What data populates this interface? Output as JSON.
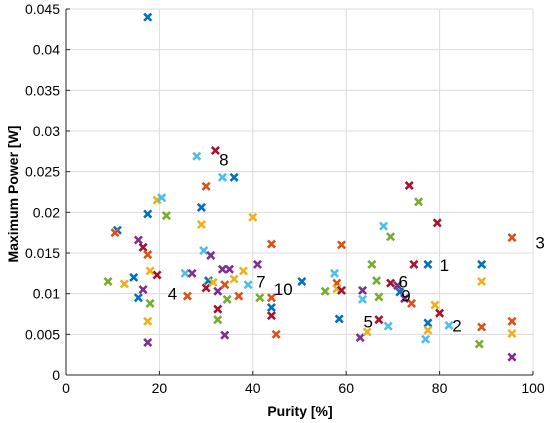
{
  "chart_data": {
    "type": "scatter",
    "title": "",
    "xlabel": "Purity [%]",
    "ylabel": "Maximum Power [W]",
    "xlim": [
      0,
      100
    ],
    "ylim": [
      0,
      0.045
    ],
    "xticks": [
      "0",
      "20",
      "40",
      "60",
      "80",
      "100"
    ],
    "yticks": [
      "0",
      "0.005",
      "0.01",
      "0.015",
      "0.02",
      "0.025",
      "0.03",
      "0.035",
      "0.04",
      "0.045"
    ],
    "grid": true,
    "legend": "none",
    "marker": "x",
    "colors": {
      "blue": "#0072bd",
      "orange": "#d95319",
      "yellow": "#edb120",
      "purple": "#7e2f8e",
      "green": "#77ac30",
      "cyan": "#4dbeee",
      "red": "#a2142f"
    },
    "points": [
      {
        "x": 17.5,
        "y": 0.044,
        "c": "blue"
      },
      {
        "x": 11,
        "y": 0.0178,
        "c": "blue"
      },
      {
        "x": 10.5,
        "y": 0.0175,
        "c": "orange"
      },
      {
        "x": 9,
        "y": 0.0115,
        "c": "green"
      },
      {
        "x": 12.5,
        "y": 0.0112,
        "c": "yellow"
      },
      {
        "x": 14.5,
        "y": 0.012,
        "c": "blue"
      },
      {
        "x": 15.5,
        "y": 0.0095,
        "c": "blue"
      },
      {
        "x": 16.5,
        "y": 0.0105,
        "c": "purple"
      },
      {
        "x": 15.5,
        "y": 0.0166,
        "c": "purple"
      },
      {
        "x": 16.5,
        "y": 0.0157,
        "c": "red"
      },
      {
        "x": 17.5,
        "y": 0.0198,
        "c": "blue"
      },
      {
        "x": 17.5,
        "y": 0.0148,
        "c": "orange"
      },
      {
        "x": 18,
        "y": 0.0128,
        "c": "yellow"
      },
      {
        "x": 18,
        "y": 0.0088,
        "c": "green"
      },
      {
        "x": 17.5,
        "y": 0.0066,
        "c": "yellow"
      },
      {
        "x": 17.5,
        "y": 0.004,
        "c": "purple"
      },
      {
        "x": 19.5,
        "y": 0.0215,
        "c": "yellow"
      },
      {
        "x": 20.5,
        "y": 0.0218,
        "c": "cyan"
      },
      {
        "x": 19.5,
        "y": 0.0123,
        "c": "red"
      },
      {
        "x": 21.5,
        "y": 0.0196,
        "c": "green"
      },
      {
        "x": 25.5,
        "y": 0.0125,
        "c": "cyan"
      },
      {
        "x": 26,
        "y": 0.0097,
        "c": "orange"
      },
      {
        "x": 27,
        "y": 0.0125,
        "c": "purple"
      },
      {
        "x": 28,
        "y": 0.0269,
        "c": "cyan"
      },
      {
        "x": 29,
        "y": 0.0206,
        "c": "blue"
      },
      {
        "x": 29,
        "y": 0.0185,
        "c": "yellow"
      },
      {
        "x": 29.5,
        "y": 0.0153,
        "c": "cyan"
      },
      {
        "x": 30,
        "y": 0.0232,
        "c": "orange"
      },
      {
        "x": 30.5,
        "y": 0.0116,
        "c": "blue"
      },
      {
        "x": 30,
        "y": 0.0107,
        "c": "red"
      },
      {
        "x": 31,
        "y": 0.0147,
        "c": "purple"
      },
      {
        "x": 31.5,
        "y": 0.0114,
        "c": "yellow"
      },
      {
        "x": 32,
        "y": 0.0276,
        "c": "red"
      },
      {
        "x": 32.5,
        "y": 0.0103,
        "c": "purple"
      },
      {
        "x": 32.5,
        "y": 0.0081,
        "c": "red"
      },
      {
        "x": 32.5,
        "y": 0.0068,
        "c": "green"
      },
      {
        "x": 33.5,
        "y": 0.0243,
        "c": "cyan"
      },
      {
        "x": 33.5,
        "y": 0.013,
        "c": "purple"
      },
      {
        "x": 34,
        "y": 0.0111,
        "c": "orange"
      },
      {
        "x": 34.5,
        "y": 0.0093,
        "c": "green"
      },
      {
        "x": 34,
        "y": 0.0049,
        "c": "purple"
      },
      {
        "x": 35,
        "y": 0.013,
        "c": "purple"
      },
      {
        "x": 36,
        "y": 0.0243,
        "c": "blue"
      },
      {
        "x": 36,
        "y": 0.0118,
        "c": "yellow"
      },
      {
        "x": 37,
        "y": 0.0097,
        "c": "orange"
      },
      {
        "x": 38,
        "y": 0.0128,
        "c": "yellow"
      },
      {
        "x": 39,
        "y": 0.0111,
        "c": "cyan"
      },
      {
        "x": 40,
        "y": 0.0194,
        "c": "yellow"
      },
      {
        "x": 41,
        "y": 0.0136,
        "c": "purple"
      },
      {
        "x": 41.5,
        "y": 0.0095,
        "c": "green"
      },
      {
        "x": 44,
        "y": 0.0161,
        "c": "orange"
      },
      {
        "x": 44,
        "y": 0.0095,
        "c": "orange"
      },
      {
        "x": 44,
        "y": 0.0083,
        "c": "blue"
      },
      {
        "x": 44,
        "y": 0.0073,
        "c": "red"
      },
      {
        "x": 45,
        "y": 0.005,
        "c": "orange"
      },
      {
        "x": 50.5,
        "y": 0.0115,
        "c": "blue"
      },
      {
        "x": 55.5,
        "y": 0.0103,
        "c": "green"
      },
      {
        "x": 57.5,
        "y": 0.0125,
        "c": "cyan"
      },
      {
        "x": 58,
        "y": 0.0113,
        "c": "orange"
      },
      {
        "x": 58,
        "y": 0.0106,
        "c": "yellow"
      },
      {
        "x": 58.5,
        "y": 0.0069,
        "c": "blue"
      },
      {
        "x": 59,
        "y": 0.016,
        "c": "orange"
      },
      {
        "x": 59,
        "y": 0.0104,
        "c": "red"
      },
      {
        "x": 63.5,
        "y": 0.0104,
        "c": "purple"
      },
      {
        "x": 63.5,
        "y": 0.0093,
        "c": "cyan"
      },
      {
        "x": 63,
        "y": 0.0046,
        "c": "purple"
      },
      {
        "x": 64.5,
        "y": 0.0053,
        "c": "yellow"
      },
      {
        "x": 65.5,
        "y": 0.0136,
        "c": "green"
      },
      {
        "x": 66.5,
        "y": 0.0116,
        "c": "green"
      },
      {
        "x": 67,
        "y": 0.0068,
        "c": "red"
      },
      {
        "x": 67,
        "y": 0.0096,
        "c": "green"
      },
      {
        "x": 68,
        "y": 0.0183,
        "c": "cyan"
      },
      {
        "x": 69.5,
        "y": 0.017,
        "c": "green"
      },
      {
        "x": 69.5,
        "y": 0.0113,
        "c": "red"
      },
      {
        "x": 69,
        "y": 0.006,
        "c": "cyan"
      },
      {
        "x": 71,
        "y": 0.011,
        "c": "purple"
      },
      {
        "x": 71.5,
        "y": 0.0102,
        "c": "blue"
      },
      {
        "x": 72.5,
        "y": 0.0094,
        "c": "purple"
      },
      {
        "x": 73.5,
        "y": 0.0233,
        "c": "red"
      },
      {
        "x": 74,
        "y": 0.0088,
        "c": "orange"
      },
      {
        "x": 74.5,
        "y": 0.0136,
        "c": "red"
      },
      {
        "x": 75.5,
        "y": 0.0213,
        "c": "green"
      },
      {
        "x": 77.5,
        "y": 0.0136,
        "c": "blue"
      },
      {
        "x": 77.5,
        "y": 0.0064,
        "c": "blue"
      },
      {
        "x": 77.5,
        "y": 0.0055,
        "c": "yellow"
      },
      {
        "x": 77,
        "y": 0.0044,
        "c": "cyan"
      },
      {
        "x": 79,
        "y": 0.0086,
        "c": "yellow"
      },
      {
        "x": 79.5,
        "y": 0.0187,
        "c": "red"
      },
      {
        "x": 80,
        "y": 0.0076,
        "c": "red"
      },
      {
        "x": 82,
        "y": 0.0061,
        "c": "cyan"
      },
      {
        "x": 88.5,
        "y": 0.0038,
        "c": "green"
      },
      {
        "x": 89,
        "y": 0.0136,
        "c": "blue"
      },
      {
        "x": 89,
        "y": 0.0115,
        "c": "yellow"
      },
      {
        "x": 89,
        "y": 0.0059,
        "c": "orange"
      },
      {
        "x": 95.5,
        "y": 0.0169,
        "c": "orange"
      },
      {
        "x": 95.5,
        "y": 0.0066,
        "c": "orange"
      },
      {
        "x": 95.5,
        "y": 0.0051,
        "c": "yellow"
      },
      {
        "x": 95.5,
        "y": 0.0022,
        "c": "purple"
      }
    ],
    "annotations": [
      {
        "text": "1",
        "x": 80,
        "y": 0.0135
      },
      {
        "text": "2",
        "x": 82.7,
        "y": 0.0061
      },
      {
        "text": "3",
        "x": 100.5,
        "y": 0.0163
      },
      {
        "text": "4",
        "x": 21.8,
        "y": 0.01
      },
      {
        "text": "5",
        "x": 63.7,
        "y": 0.0066
      },
      {
        "text": "6",
        "x": 71.2,
        "y": 0.0115
      },
      {
        "text": "7",
        "x": 40.7,
        "y": 0.0115
      },
      {
        "text": "8",
        "x": 32.8,
        "y": 0.0265
      },
      {
        "text": "9",
        "x": 71.8,
        "y": 0.0098
      },
      {
        "text": "10",
        "x": 44.5,
        "y": 0.0106
      }
    ]
  }
}
